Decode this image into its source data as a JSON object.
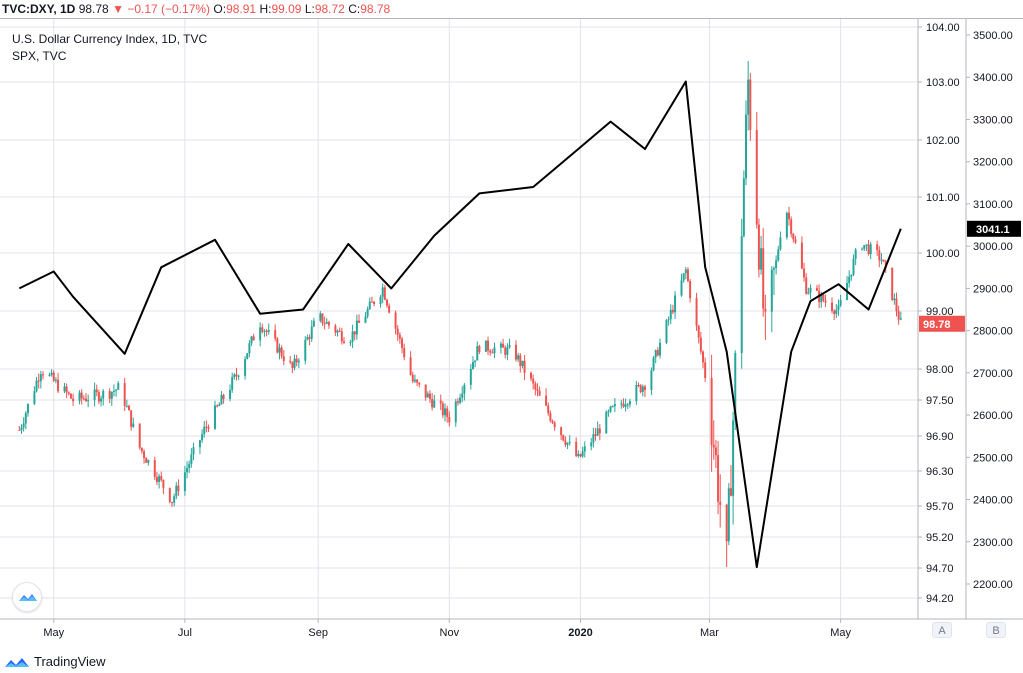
{
  "quote_bar": {
    "symbol": "TVC:DXY, 1D",
    "last": "98.78",
    "arrow": "▼",
    "change": "−0.17 (−0.17%)",
    "o_label": "O:",
    "o_value": "98.91",
    "h_label": "H:",
    "h_value": "99.09",
    "l_label": "L:",
    "l_value": "98.72",
    "c_label": "C:",
    "c_value": "98.78"
  },
  "legend": {
    "main": "U.S. Dollar Currency Index, 1D, TVC",
    "overlay": "SPX, TVC"
  },
  "brand": {
    "name": "TradingView"
  },
  "buttons": {
    "a": "A",
    "b": "B"
  },
  "colors": {
    "up": "#26a69a",
    "down": "#ef5350",
    "spx_line": "#000000",
    "grid": "#e0e3eb",
    "text": "#131722"
  },
  "chart_data": {
    "type": "candlestick+line",
    "x_tick_labels": [
      "May",
      "Jul",
      "Sep",
      "Nov",
      "2020",
      "Mar",
      "May"
    ],
    "left_axis": {
      "series": "U.S. Dollar Currency Index",
      "ticks": [
        "104.00",
        "103.00",
        "102.00",
        "101.00",
        "100.00",
        "99.00",
        "98.00",
        "97.50",
        "96.90",
        "96.30",
        "95.70",
        "95.20",
        "94.70",
        "94.20"
      ],
      "last_value_label": "98.78",
      "scale": "log"
    },
    "right_axis": {
      "series": "SPX",
      "ticks": [
        "3500.00",
        "3400.00",
        "3300.00",
        "3200.00",
        "3100.00",
        "3000.00",
        "2900.00",
        "2800.00",
        "2700.00",
        "2600.00",
        "2500.00",
        "2400.00",
        "2300.00",
        "2200.00"
      ],
      "last_value_label": "3041.1"
    },
    "series": [
      {
        "name": "U.S. Dollar Currency Index",
        "style": "candles",
        "points": [
          [
            "2019-04-15",
            97.0
          ],
          [
            "2019-04-25",
            98.0
          ],
          [
            "2019-05-10",
            97.5
          ],
          [
            "2019-05-25",
            97.6
          ],
          [
            "2019-06-01",
            97.7
          ],
          [
            "2019-06-10",
            96.7
          ],
          [
            "2019-06-25",
            95.8
          ],
          [
            "2019-07-10",
            97.0
          ],
          [
            "2019-07-25",
            97.9
          ],
          [
            "2019-08-05",
            98.8
          ],
          [
            "2019-08-20",
            98.0
          ],
          [
            "2019-09-01",
            98.9
          ],
          [
            "2019-09-15",
            98.5
          ],
          [
            "2019-10-01",
            99.4
          ],
          [
            "2019-10-15",
            97.8
          ],
          [
            "2019-11-01",
            97.2
          ],
          [
            "2019-11-15",
            98.4
          ],
          [
            "2019-12-01",
            98.3
          ],
          [
            "2019-12-15",
            97.4
          ],
          [
            "2019-12-31",
            96.5
          ],
          [
            "2020-01-15",
            97.3
          ],
          [
            "2020-02-01",
            97.8
          ],
          [
            "2020-02-19",
            99.7
          ],
          [
            "2020-03-01",
            97.5
          ],
          [
            "2020-03-09",
            94.7
          ],
          [
            "2020-03-19",
            103.0
          ],
          [
            "2020-03-27",
            98.5
          ],
          [
            "2020-04-05",
            100.9
          ],
          [
            "2020-04-15",
            99.4
          ],
          [
            "2020-04-30",
            99.0
          ],
          [
            "2020-05-10",
            100.2
          ],
          [
            "2020-05-20",
            99.9
          ],
          [
            "2020-05-29",
            98.78
          ]
        ]
      },
      {
        "name": "SPX",
        "style": "line",
        "points": [
          [
            "2019-04-15",
            2900
          ],
          [
            "2019-05-01",
            2940
          ],
          [
            "2019-05-10",
            2880
          ],
          [
            "2019-06-03",
            2745
          ],
          [
            "2019-06-20",
            2950
          ],
          [
            "2019-07-15",
            3015
          ],
          [
            "2019-08-05",
            2840
          ],
          [
            "2019-08-25",
            2850
          ],
          [
            "2019-09-15",
            3005
          ],
          [
            "2019-10-05",
            2900
          ],
          [
            "2019-10-25",
            3025
          ],
          [
            "2019-11-15",
            3125
          ],
          [
            "2019-12-10",
            3140
          ],
          [
            "2019-12-31",
            3230
          ],
          [
            "2020-01-15",
            3295
          ],
          [
            "2020-01-31",
            3230
          ],
          [
            "2020-02-19",
            3390
          ],
          [
            "2020-02-28",
            2950
          ],
          [
            "2020-03-09",
            2750
          ],
          [
            "2020-03-23",
            2240
          ],
          [
            "2020-04-08",
            2750
          ],
          [
            "2020-04-17",
            2870
          ],
          [
            "2020-04-30",
            2910
          ],
          [
            "2020-05-14",
            2850
          ],
          [
            "2020-05-29",
            3041.1
          ]
        ]
      }
    ]
  }
}
